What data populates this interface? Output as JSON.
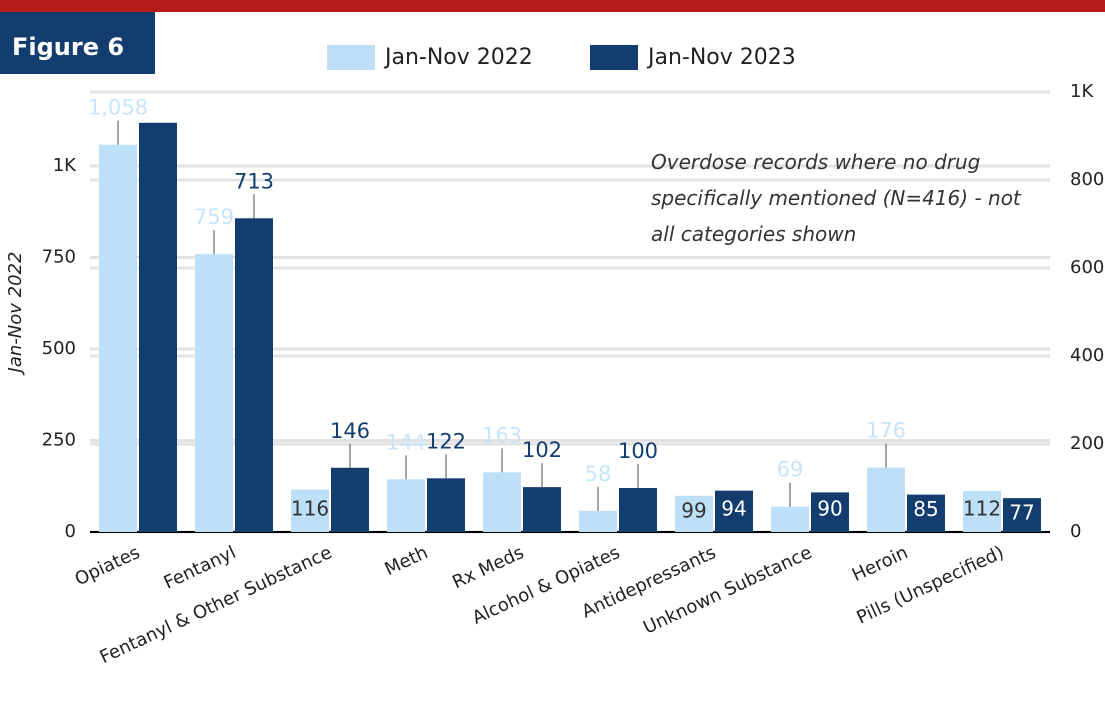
{
  "header": {
    "figure": "Figure 6"
  },
  "chart_data": {
    "type": "bar",
    "annotation": "Overdose records where no drug specifically mentioned (N=416) - not all categories shown",
    "y_label": "Jan-Nov 2022",
    "categories": [
      "Opiates",
      "Fentanyl",
      "Fentanyl & Other Substance",
      "Meth",
      "Rx Meds",
      "Alcohol & Opiates",
      "Antidepressants",
      "Unknown Substance",
      "Heroin",
      "Pills (Unspecified)"
    ],
    "series": [
      {
        "name": "Jan-Nov 2022",
        "color": "#bde0f8",
        "values": [
          1058,
          759,
          116,
          144,
          163,
          58,
          99,
          69,
          176,
          112
        ],
        "value_labels": [
          "1,058",
          "759",
          "116",
          "144",
          "163",
          "58",
          "99",
          "69",
          "176",
          "112"
        ]
      },
      {
        "name": "Jan-Nov 2023",
        "color": "#123d6e",
        "axis": "y2",
        "values": [
          930,
          713,
          146,
          122,
          102,
          100,
          94,
          90,
          85,
          77
        ]
      }
    ],
    "ylim": [
      0,
      1202
    ],
    "yticks": [
      0,
      250,
      500,
      750,
      {
        "value": 1000,
        "label": "1K"
      }
    ],
    "y2lim": [
      0,
      1000
    ],
    "y2ticks": [
      0,
      200,
      400,
      600,
      800,
      {
        "value": 1000,
        "label": "1K"
      }
    ],
    "grid": true
  }
}
